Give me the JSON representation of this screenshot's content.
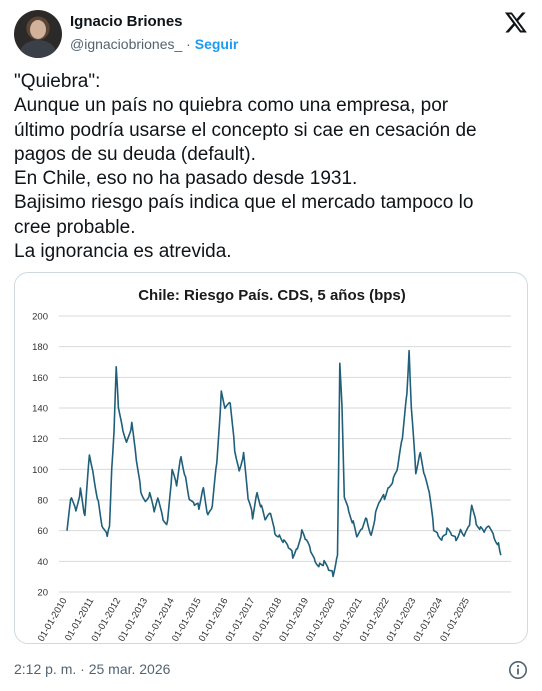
{
  "author": {
    "name": "Ignacio Briones",
    "handle": "@ignaciobriones_",
    "separator": " · ",
    "follow_label": "Seguir"
  },
  "tweet": {
    "lines": [
      "\"Quiebra\":",
      "Aunque un país no quiebra como una empresa, por",
      "último podría usarse el concepto si cae en cesación de",
      "pagos de su deuda (default).",
      "En Chile, eso no ha pasado desde 1931.",
      "Bajisimo riesgo país indica que el mercado tampoco lo",
      "cree probable.",
      "La ignorancia es atrevida."
    ],
    "timestamp": "2:12 p. m. · 25 mar. 2026"
  },
  "icons": {
    "x_logo": "x-logo-icon",
    "info": "info-icon",
    "avatar": "avatar-photo"
  },
  "colors": {
    "line": "#1f5f7a",
    "link": "#1d9bf0",
    "muted": "#536471",
    "grid": "#d9d9d9"
  },
  "chart_data": {
    "type": "line",
    "title": "Chile: Riesgo País. CDS, 5 años (bps)",
    "xlabel": "",
    "ylabel": "",
    "ylim": [
      20,
      200
    ],
    "yticks": [
      "20",
      "40",
      "60",
      "80",
      "100",
      "120",
      "140",
      "160",
      "180",
      "200"
    ],
    "xticks": [
      "01-01-2010",
      "01-01-2011",
      "01-01-2012",
      "01-01-2013",
      "01-01-2014",
      "01-01-2015",
      "01-01-2016",
      "01-01-2017",
      "01-01-2018",
      "01-01-2019",
      "01-01-2020",
      "01-01-2021",
      "01-01-2022",
      "01-01-2023",
      "01-01-2024",
      "01-01-2025"
    ],
    "grid": "horizontal",
    "series": [
      {
        "x": [
          "2010-01",
          "2010-03",
          "2010-05",
          "2010-07",
          "2010-09",
          "2010-11",
          "2011-01",
          "2011-03",
          "2011-05",
          "2011-07",
          "2011-08",
          "2011-09",
          "2011-10",
          "2011-11",
          "2011-12",
          "2012-02",
          "2012-04",
          "2012-06",
          "2012-08",
          "2012-10",
          "2012-12",
          "2013-02",
          "2013-04",
          "2013-06",
          "2013-08",
          "2013-10",
          "2013-12",
          "2014-02",
          "2014-04",
          "2014-06",
          "2014-08",
          "2014-10",
          "2014-12",
          "2015-02",
          "2015-04",
          "2015-06",
          "2015-08",
          "2015-09",
          "2015-10",
          "2015-12",
          "2016-02",
          "2016-04",
          "2016-06",
          "2016-08",
          "2016-10",
          "2016-12",
          "2017-02",
          "2017-04",
          "2017-06",
          "2017-08",
          "2017-10",
          "2017-12",
          "2018-02",
          "2018-04",
          "2018-06",
          "2018-08",
          "2018-10",
          "2018-12",
          "2019-02",
          "2019-04",
          "2019-06",
          "2019-08",
          "2019-10",
          "2019-12",
          "2020-02",
          "2020-03",
          "2020-04",
          "2020-05",
          "2020-07",
          "2020-09",
          "2020-11",
          "2021-01",
          "2021-03",
          "2021-05",
          "2021-07",
          "2021-09",
          "2021-11",
          "2022-01",
          "2022-03",
          "2022-05",
          "2022-07",
          "2022-09",
          "2022-10",
          "2022-11",
          "2022-12",
          "2023-01",
          "2023-03",
          "2023-05",
          "2023-07",
          "2023-09",
          "2023-11",
          "2024-01",
          "2024-03",
          "2024-05",
          "2024-07",
          "2024-09",
          "2024-11",
          "2025-01",
          "2025-02",
          "2025-04",
          "2025-06",
          "2025-08",
          "2025-10",
          "2025-12",
          "2026-02",
          "2026-03"
        ],
        "y": [
          60,
          82,
          72,
          85,
          68,
          110,
          96,
          80,
          62,
          58,
          65,
          100,
          122,
          165,
          140,
          125,
          118,
          130,
          108,
          88,
          80,
          84,
          72,
          80,
          66,
          64,
          98,
          90,
          110,
          96,
          80,
          78,
          76,
          88,
          68,
          74,
          104,
          125,
          150,
          140,
          145,
          115,
          100,
          110,
          80,
          68,
          84,
          74,
          66,
          72,
          60,
          58,
          54,
          50,
          44,
          48,
          58,
          52,
          46,
          40,
          38,
          40,
          36,
          33,
          45,
          168,
          140,
          82,
          72,
          64,
          55,
          62,
          70,
          58,
          72,
          80,
          82,
          88,
          92,
          100,
          120,
          150,
          177,
          140,
          122,
          100,
          112,
          95,
          84,
          60,
          56,
          54,
          60,
          58,
          56,
          62,
          58,
          64,
          78,
          64,
          60,
          58,
          62,
          56,
          52,
          44
        ]
      }
    ]
  }
}
